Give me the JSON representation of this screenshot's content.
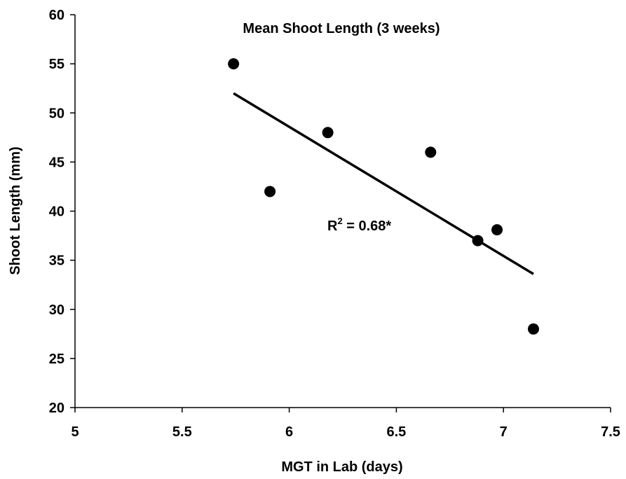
{
  "chart_data": {
    "type": "scatter",
    "title": "Mean Shoot Length (3 weeks)",
    "xlabel": "MGT in Lab (days)",
    "ylabel": "Shoot Length (mm)",
    "xlim": [
      5,
      7.5
    ],
    "ylim": [
      20,
      60
    ],
    "x_ticks": [
      "5",
      "5.5",
      "6",
      "6.5",
      "7",
      "7.5"
    ],
    "y_ticks": [
      "20",
      "25",
      "30",
      "35",
      "40",
      "45",
      "50",
      "55",
      "60"
    ],
    "grid": false,
    "series": [
      {
        "points": [
          {
            "x": 5.74,
            "y": 55
          },
          {
            "x": 5.91,
            "y": 42
          },
          {
            "x": 6.18,
            "y": 48
          },
          {
            "x": 6.66,
            "y": 46
          },
          {
            "x": 6.88,
            "y": 37
          },
          {
            "x": 6.97,
            "y": 38.1
          },
          {
            "x": 7.14,
            "y": 28
          }
        ]
      }
    ],
    "trendline": {
      "x1": 5.74,
      "y1": 52,
      "x2": 7.14,
      "y2": 33.6
    },
    "annotation": {
      "label": "R",
      "superscript": "2",
      "value": " = 0.68*"
    }
  }
}
